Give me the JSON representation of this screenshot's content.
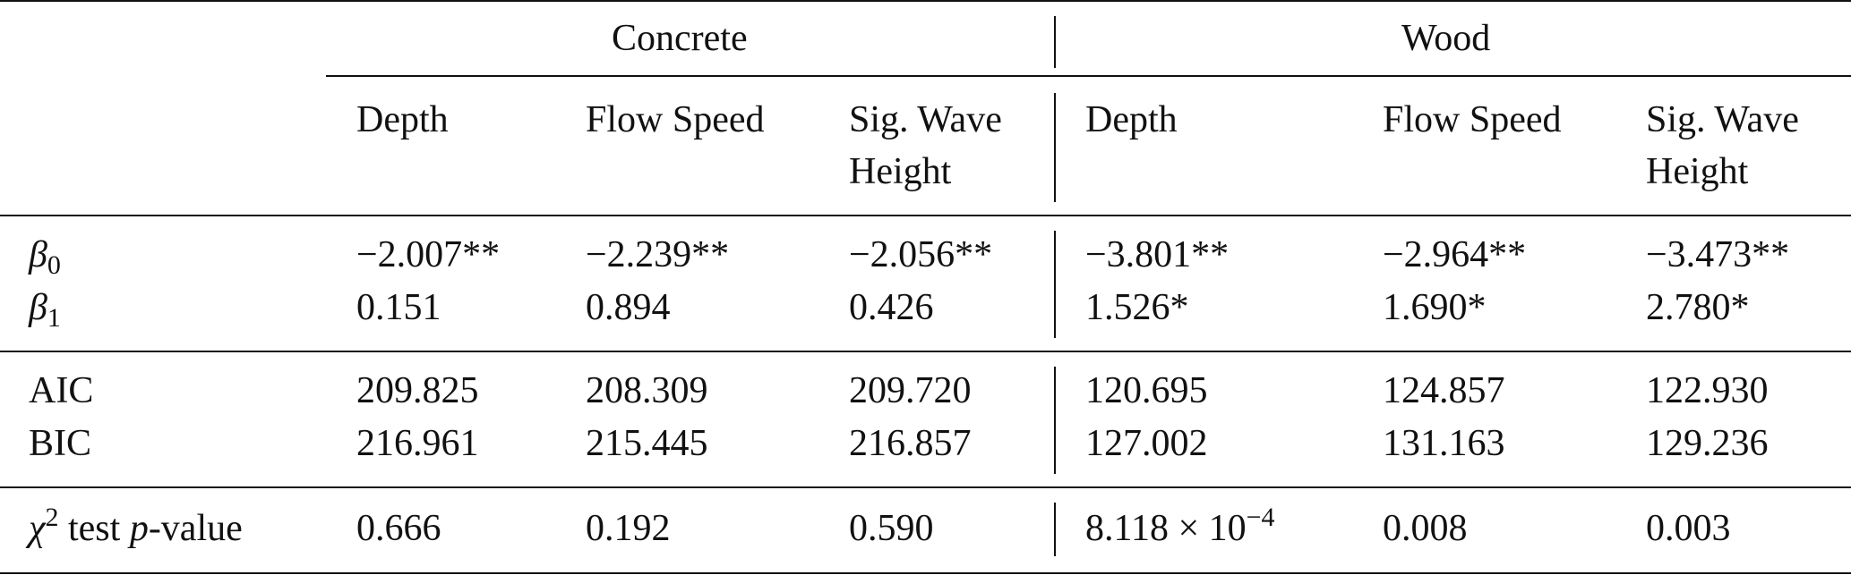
{
  "table": {
    "groups": [
      "Concrete",
      "Wood"
    ],
    "columns": [
      "Depth",
      "Flow Speed",
      "Sig. Wave",
      "Height",
      "Depth",
      "Flow Speed",
      "Sig. Wave",
      "Height"
    ],
    "rows": {
      "beta0": {
        "label_symbol": "β",
        "label_sub": "0",
        "values": [
          "−2.007**",
          "−2.239**",
          "−2.056**",
          "−3.801**",
          "−2.964**",
          "−3.473**"
        ]
      },
      "beta1": {
        "label_symbol": "β",
        "label_sub": "1",
        "values": [
          "0.151",
          "0.894",
          "0.426",
          "1.526*",
          "1.690*",
          "2.780*"
        ]
      },
      "aic": {
        "label": "AIC",
        "values": [
          "209.825",
          "208.309",
          "209.720",
          "120.695",
          "124.857",
          "122.930"
        ]
      },
      "bic": {
        "label": "BIC",
        "values": [
          "216.961",
          "215.445",
          "216.857",
          "127.002",
          "131.163",
          "129.236"
        ]
      },
      "chi": {
        "label_symbol": "χ",
        "label_sup": "2",
        "label_mid": " test ",
        "label_p": "p",
        "label_end": "-value",
        "values": [
          "0.666",
          "0.192",
          "0.590",
          "",
          "0.008",
          "0.003"
        ],
        "wood_depth_mantissa": "8.118 × 10",
        "wood_depth_exponent": "−4"
      }
    }
  }
}
